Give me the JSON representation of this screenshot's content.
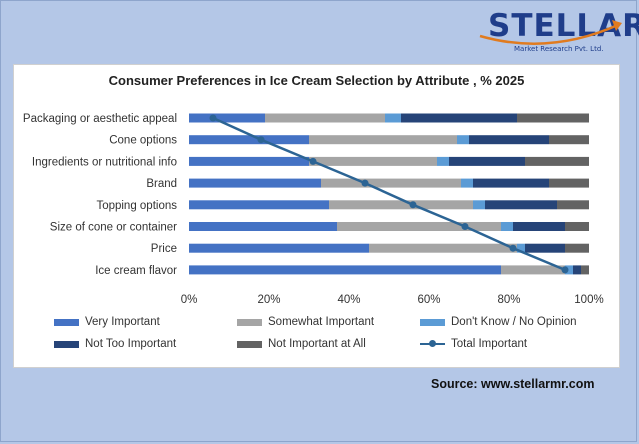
{
  "brand": {
    "logo_word": "STELLAR",
    "logo_sub": "Market Research Pvt. Ltd."
  },
  "source": "Source: www.stellarmr.com",
  "colors": {
    "background": "#b4c7e7",
    "very_important": "#4472c4",
    "somewhat_important": "#a5a5a5",
    "dont_know": "#5b9bd5",
    "not_too_important": "#264478",
    "not_important_at_all": "#636363",
    "total_line": "#2c6494"
  },
  "chart_data": {
    "type": "bar",
    "orientation": "horizontal",
    "stacked": true,
    "title": "Consumer Preferences in Ice Cream Selection by Attribute , % 2025",
    "categories": [
      "Packaging or aesthetic appeal",
      "Cone options",
      "Ingredients or nutritional info",
      "Brand",
      "Topping options",
      "Size of cone or container",
      "Price",
      "Ice cream flavor"
    ],
    "series": [
      {
        "name": "Very Important",
        "values": [
          19,
          30,
          30,
          33,
          35,
          37,
          45,
          78
        ]
      },
      {
        "name": "Somewhat Important",
        "values": [
          30,
          37,
          32,
          35,
          36,
          41,
          37,
          16
        ]
      },
      {
        "name": "Don't Know / No Opinion",
        "values": [
          4,
          3,
          3,
          3,
          3,
          3,
          2,
          2
        ]
      },
      {
        "name": "Not Too Important",
        "values": [
          29,
          20,
          19,
          19,
          18,
          13,
          10,
          2
        ]
      },
      {
        "name": "Not Important at All",
        "values": [
          18,
          10,
          16,
          10,
          8,
          6,
          6,
          2
        ]
      }
    ],
    "line_series": {
      "name": "Total Important",
      "values": [
        6,
        18,
        31,
        44,
        56,
        69,
        81,
        94
      ]
    },
    "xlim": [
      0,
      100
    ],
    "x_ticks": [
      "0%",
      "20%",
      "40%",
      "60%",
      "80%",
      "100%"
    ],
    "legend_position": "bottom",
    "grid": false
  }
}
